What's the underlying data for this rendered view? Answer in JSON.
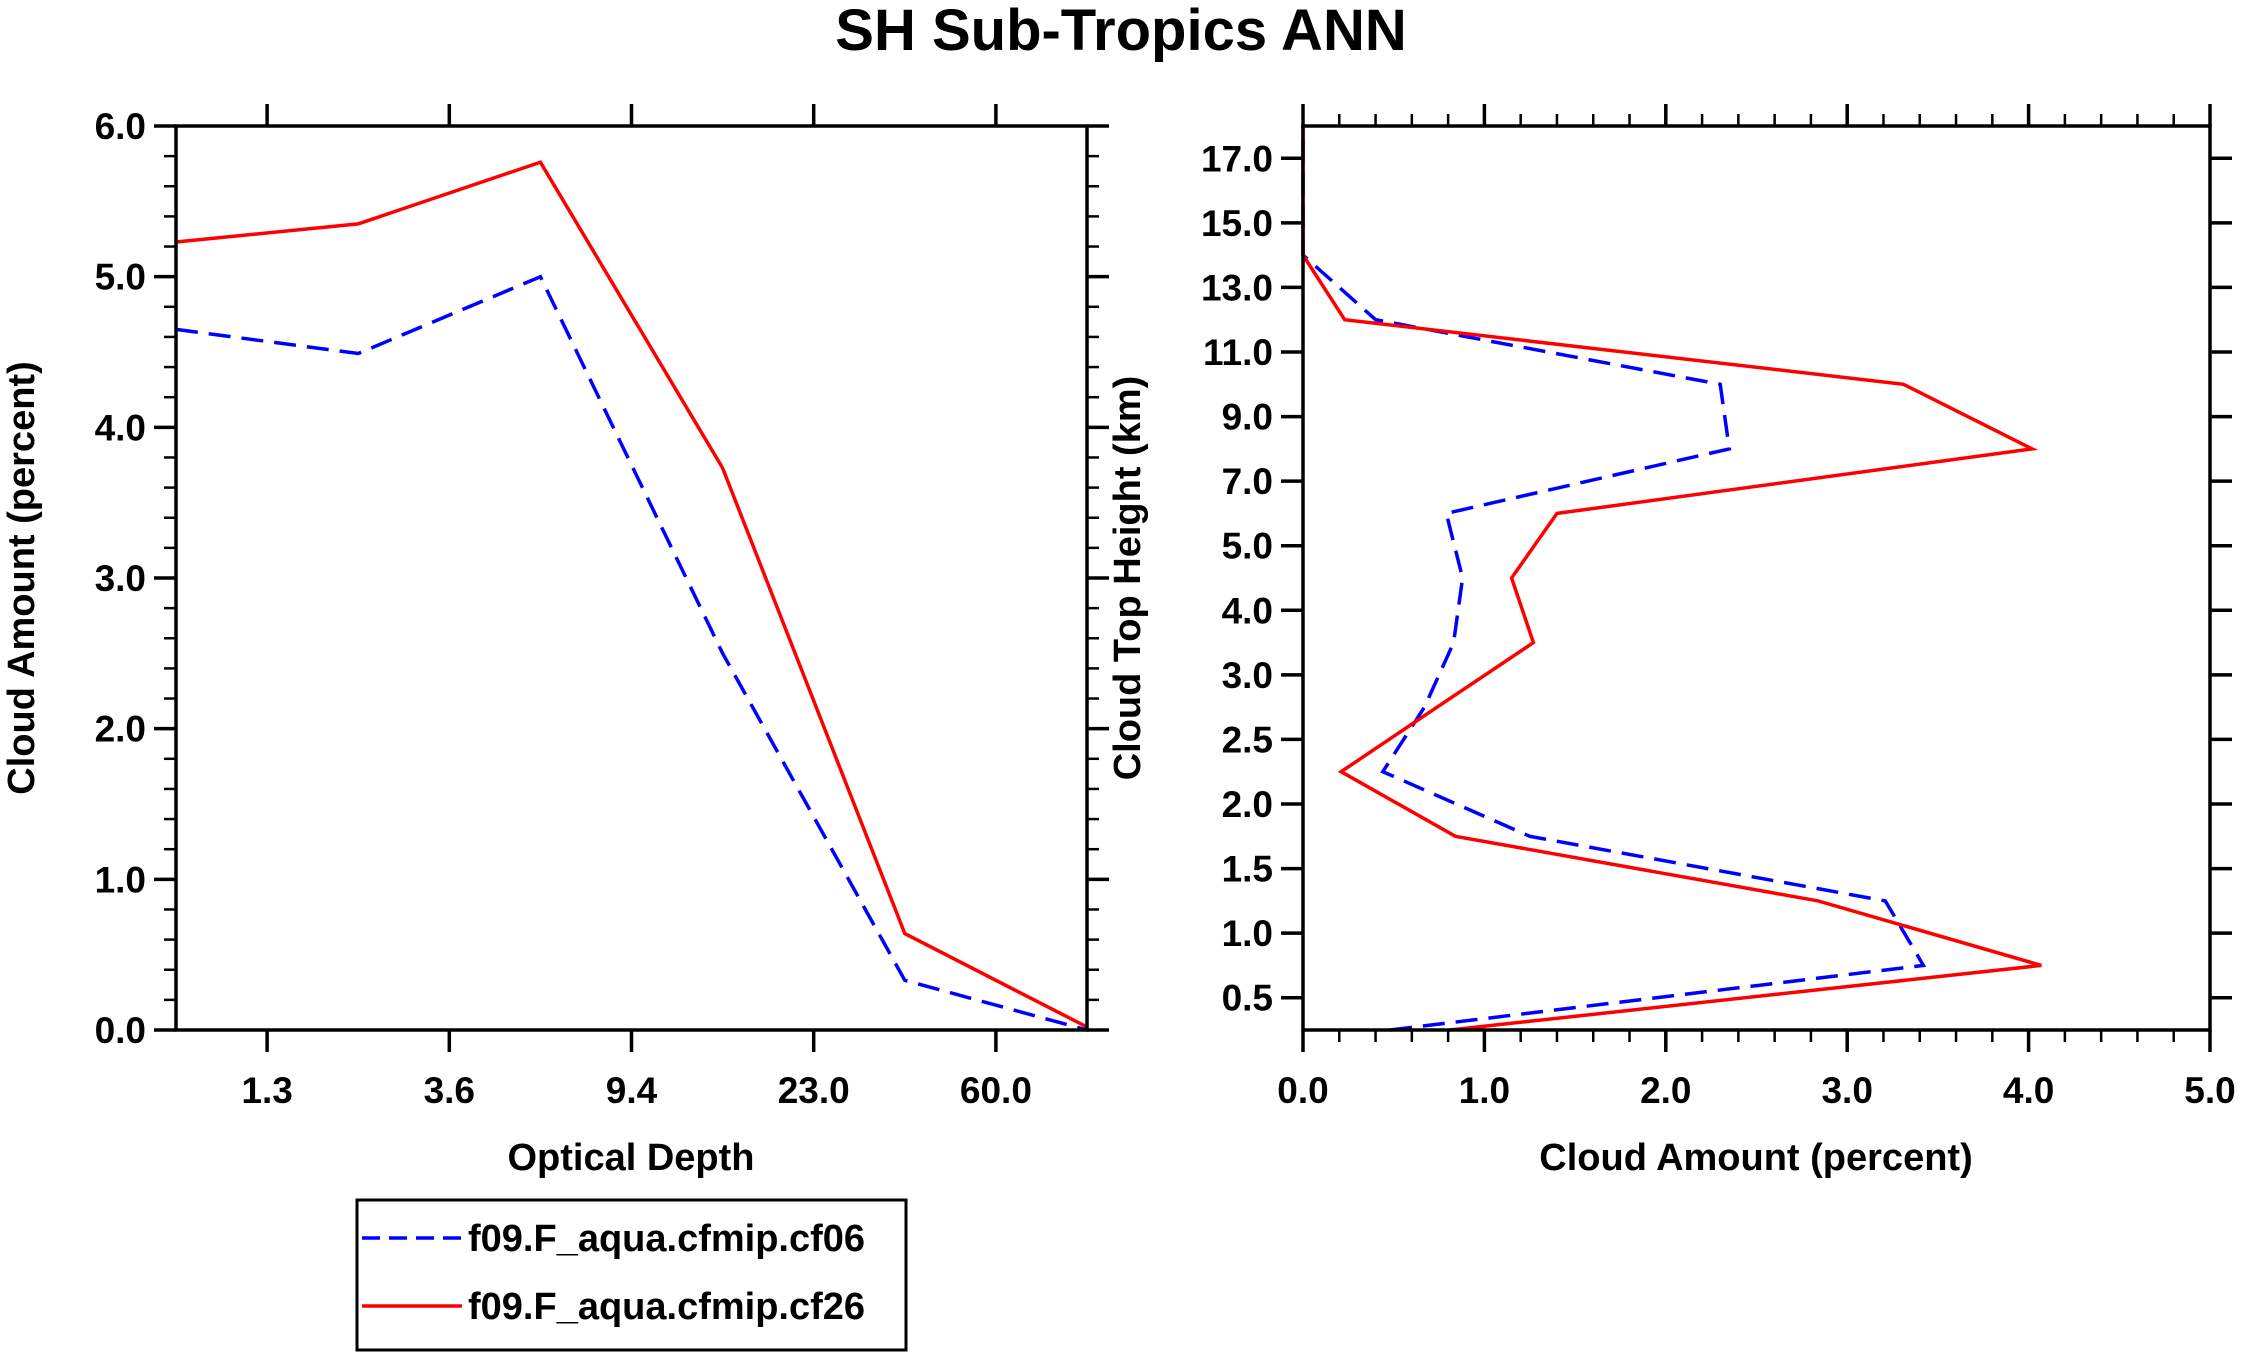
{
  "title": "SH Sub-Tropics ANN",
  "legend": {
    "entries": [
      {
        "label": "f09.F_aqua.cfmip.cf06",
        "color": "#0000ff",
        "style": "dashed"
      },
      {
        "label": "f09.F_aqua.cfmip.cf26",
        "color": "#ff0000",
        "style": "solid"
      }
    ]
  },
  "chart_data": [
    {
      "type": "line",
      "xlabel": "Optical Depth",
      "ylabel": "Cloud Amount (percent)",
      "xlim": [
        0,
        5
      ],
      "ylim": [
        0,
        6
      ],
      "x_ticks": [
        0.5,
        1.5,
        2.5,
        3.5,
        4.5
      ],
      "x_tick_labels": [
        "1.3",
        "3.6",
        "9.4",
        "23.0",
        "60.0"
      ],
      "y_ticks": [
        0,
        1,
        2,
        3,
        4,
        5,
        6
      ],
      "y_tick_labels": [
        "0.0",
        "1.0",
        "2.0",
        "3.0",
        "4.0",
        "5.0",
        "6.0"
      ],
      "y_minor_step": 0.2,
      "series": [
        {
          "name": "f09.F_aqua.cfmip.cf06",
          "color": "#0000ff",
          "style": "dashed",
          "x": [
            0,
            1,
            2,
            3,
            4,
            5
          ],
          "y": [
            4.65,
            4.49,
            5.0,
            2.5,
            0.33,
            0.0
          ]
        },
        {
          "name": "f09.F_aqua.cfmip.cf26",
          "color": "#ff0000",
          "style": "solid",
          "x": [
            0,
            1,
            2,
            3,
            4,
            5
          ],
          "y": [
            5.23,
            5.35,
            5.76,
            3.73,
            0.64,
            0.02
          ]
        }
      ]
    },
    {
      "type": "line",
      "xlabel": "Cloud Amount (percent)",
      "ylabel": "Cloud Top Height (km)",
      "xlim": [
        0,
        5
      ],
      "ylim": [
        -0.5,
        13.5
      ],
      "x_ticks": [
        0,
        1,
        2,
        3,
        4,
        5
      ],
      "x_tick_labels": [
        "0.0",
        "1.0",
        "2.0",
        "3.0",
        "4.0",
        "5.0"
      ],
      "x_minor_step": 0.2,
      "y_ticks": [
        0,
        1,
        2,
        3,
        4,
        5,
        6,
        7,
        8,
        9,
        10,
        11,
        12,
        13
      ],
      "y_tick_labels": [
        "0.5",
        "1.0",
        "1.5",
        "2.0",
        "2.5",
        "3.0",
        "4.0",
        "5.0",
        "7.0",
        "9.0",
        "11.0",
        "13.0",
        "15.0",
        "17.0"
      ],
      "series": [
        {
          "name": "f09.F_aqua.cfmip.cf06",
          "color": "#0000ff",
          "style": "dashed",
          "x": [
            0.48,
            3.42,
            3.21,
            1.25,
            0.44,
            0.67,
            0.83,
            0.88,
            0.79,
            2.35,
            2.3,
            0.4,
            0.0,
            0.0
          ],
          "y": [
            -0.5,
            0.5,
            1.5,
            2.5,
            3.5,
            4.5,
            5.5,
            6.5,
            7.5,
            8.5,
            9.5,
            10.5,
            11.5,
            13.5
          ]
        },
        {
          "name": "f09.F_aqua.cfmip.cf26",
          "color": "#ff0000",
          "style": "solid",
          "x": [
            0.81,
            4.07,
            2.84,
            0.84,
            0.21,
            0.74,
            1.27,
            1.15,
            1.4,
            4.02,
            3.31,
            0.23,
            0.0,
            0.0
          ],
          "y": [
            -0.5,
            0.5,
            1.5,
            2.5,
            3.5,
            4.5,
            5.5,
            6.5,
            7.5,
            8.5,
            9.5,
            10.5,
            11.5,
            13.5
          ]
        }
      ]
    }
  ]
}
